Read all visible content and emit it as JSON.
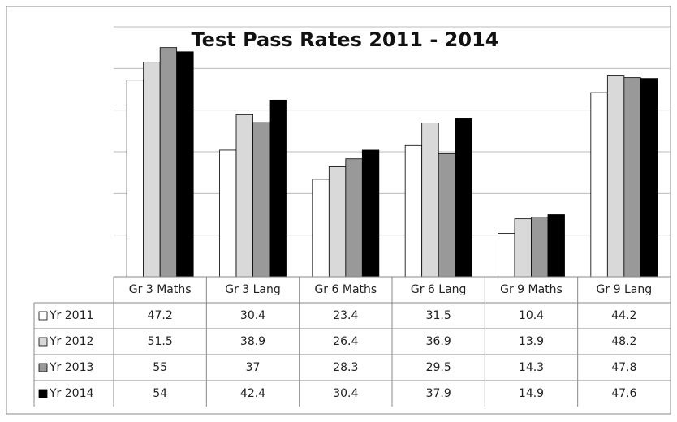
{
  "chart_data": {
    "type": "bar",
    "title": "Test Pass Rates 2011 - 2014",
    "categories": [
      "Gr 3 Maths",
      "Gr 3 Lang",
      "Gr 6 Maths",
      "Gr 6 Lang",
      "Gr 9 Maths",
      "Gr 9 Lang"
    ],
    "series": [
      {
        "name": "Yr 2011",
        "color": "#ffffff",
        "values": [
          47.2,
          30.4,
          23.4,
          31.5,
          10.4,
          44.2
        ]
      },
      {
        "name": "Yr 2012",
        "color": "#d9d9d9",
        "values": [
          51.5,
          38.9,
          26.4,
          36.9,
          13.9,
          48.2
        ]
      },
      {
        "name": "Yr 2013",
        "color": "#999999",
        "values": [
          55,
          37,
          28.3,
          29.5,
          14.3,
          47.8
        ]
      },
      {
        "name": "Yr 2014",
        "color": "#000000",
        "values": [
          54,
          42.4,
          30.4,
          37.9,
          14.9,
          47.6
        ]
      }
    ],
    "ylim": [
      0,
      60
    ],
    "yticks": [
      0,
      10,
      20,
      30,
      40,
      50,
      60
    ],
    "grid": true,
    "data_table": true
  }
}
